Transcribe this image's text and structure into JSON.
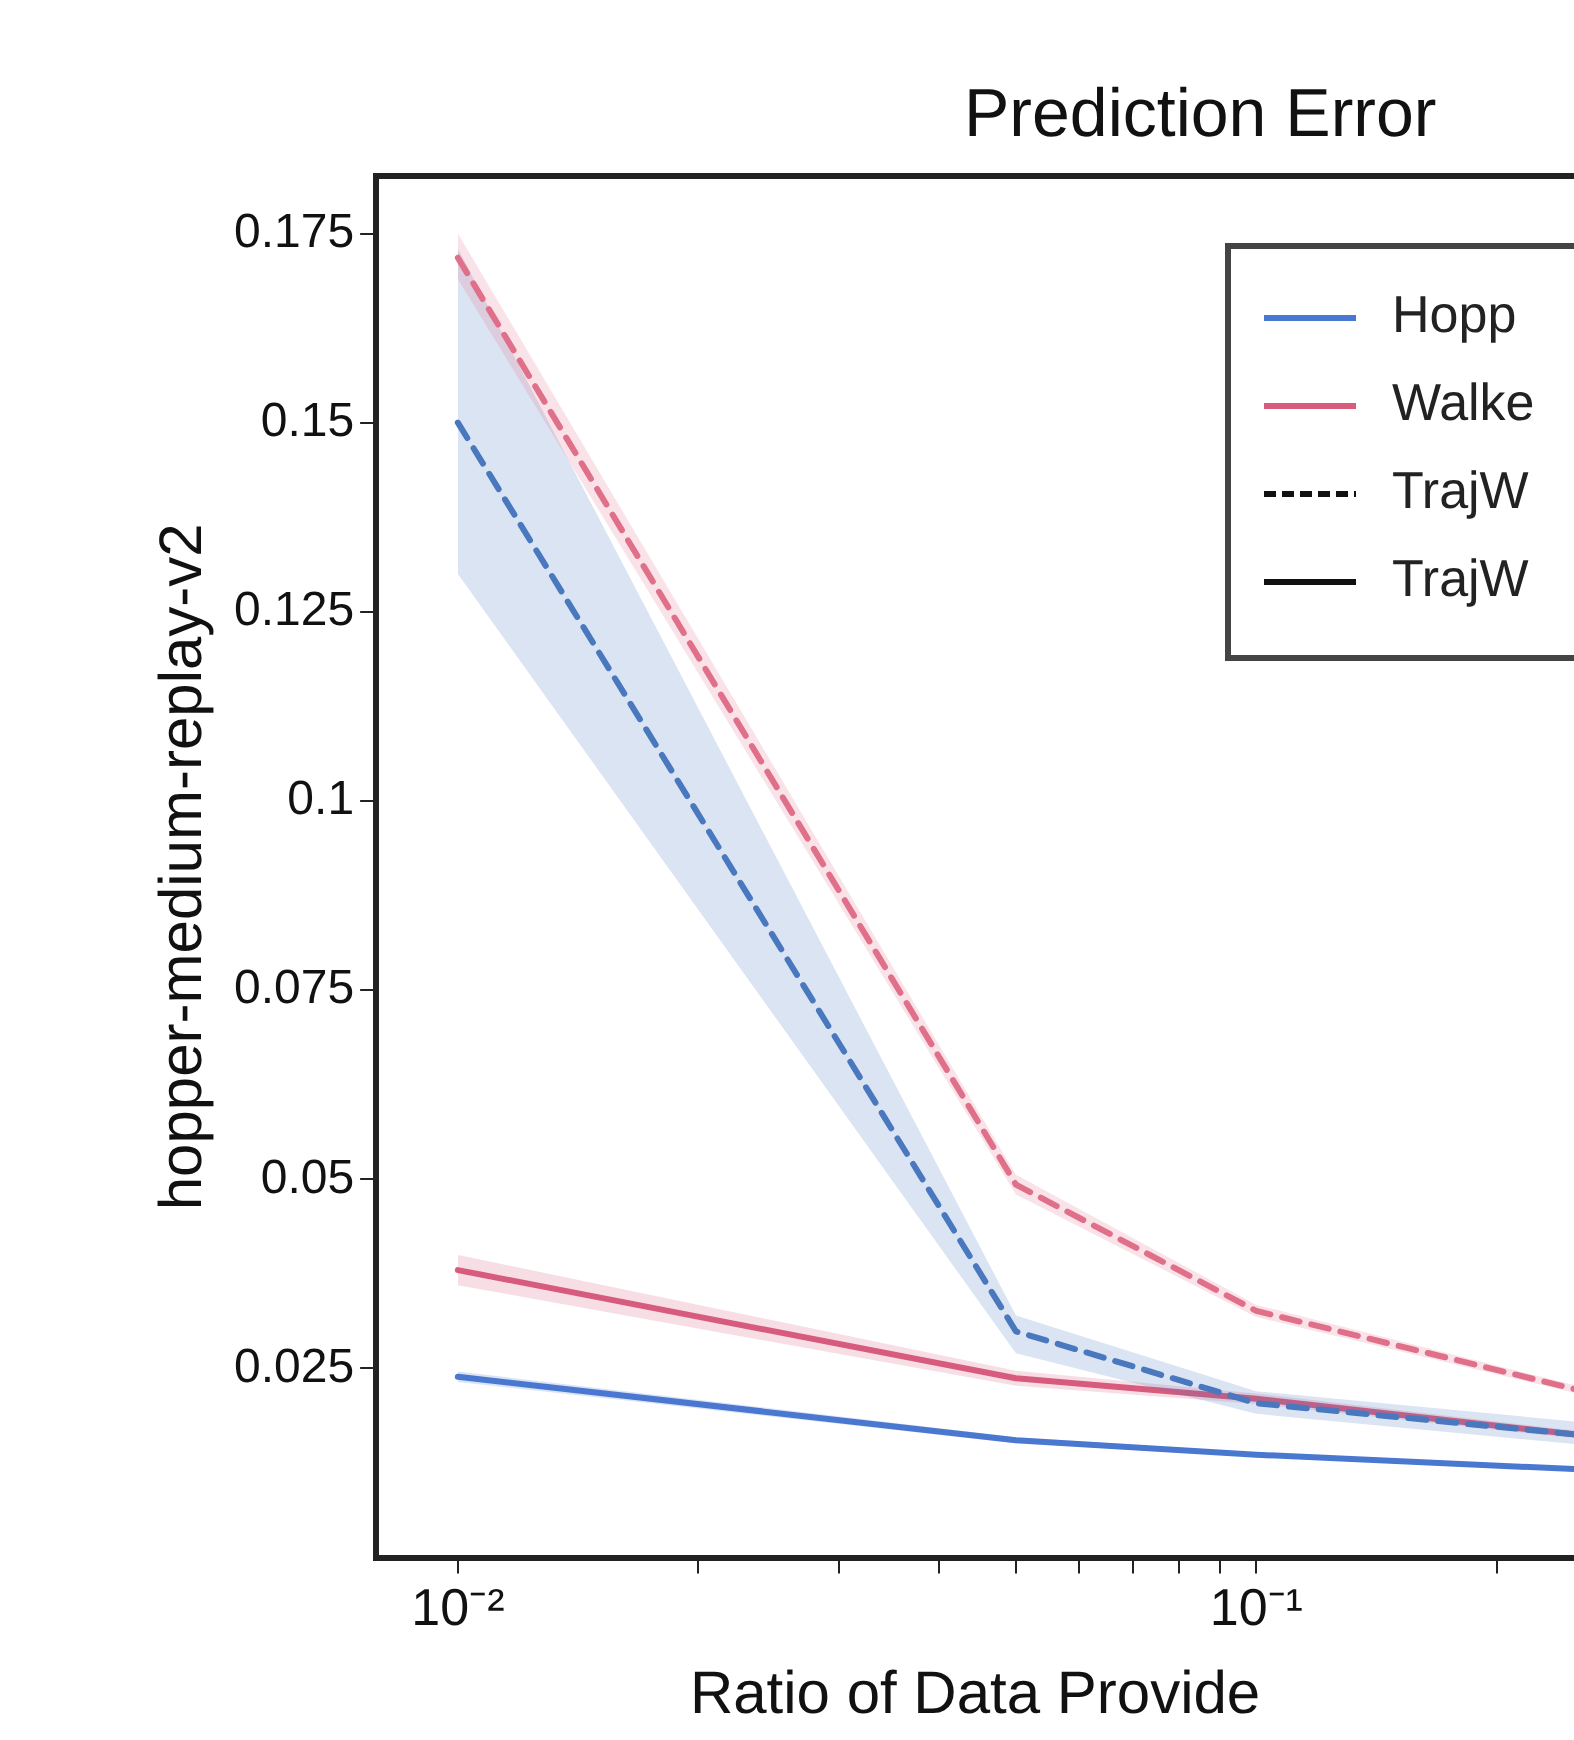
{
  "chart_data": {
    "type": "line",
    "title": "Prediction Error",
    "xlabel": "Ratio of Data Provide",
    "ylabel": "hopper-medium-replay-v2",
    "x": [
      0.01,
      0.05,
      0.1,
      0.25
    ],
    "log": "x",
    "xlim": [
      0.0079,
      0.25
    ],
    "xticks": [
      {
        "value": 0.01,
        "label": "10⁻²"
      },
      {
        "value": 0.02,
        "label": null
      },
      {
        "value": 0.03,
        "label": null
      },
      {
        "value": 0.04,
        "label": null
      },
      {
        "value": 0.05,
        "label": null
      },
      {
        "value": 0.06,
        "label": null
      },
      {
        "value": 0.07,
        "label": null
      },
      {
        "value": 0.08,
        "label": null
      },
      {
        "value": 0.09,
        "label": null
      },
      {
        "value": 0.1,
        "label": "10⁻¹"
      },
      {
        "value": 0.2,
        "label": null
      }
    ],
    "ylim": [
      0,
      0.1826
    ],
    "yticks": [
      0.025,
      0.05,
      0.075,
      0.1,
      0.125,
      0.15,
      0.175
    ],
    "grid": false,
    "legend": "top right",
    "marker": "none",
    "series": [
      {
        "color": "#e0708a",
        "line_style": "dashed",
        "values": [
          0.1718,
          0.0493,
          0.0326,
          0.0223
        ],
        "lower": [
          0.169,
          0.048,
          0.0318,
          0.0218
        ],
        "upper": [
          0.175,
          0.0506,
          0.0334,
          0.0228
        ]
      },
      {
        "color": "#4a78c0",
        "line_style": "dashed",
        "values": [
          0.15,
          0.0299,
          0.0204,
          0.0163
        ],
        "lower": [
          0.13,
          0.027,
          0.019,
          0.015
        ],
        "upper": [
          0.173,
          0.032,
          0.022,
          0.018
        ]
      },
      {
        "name": "Hopp",
        "color": "#4a78d0",
        "line_style": "solid",
        "values": [
          0.0239,
          0.0155,
          0.0136,
          0.0117
        ],
        "lower": [
          0.0232,
          0.0151,
          0.0133,
          0.0114
        ],
        "upper": [
          0.0246,
          0.0159,
          0.0139,
          0.012
        ]
      },
      {
        "name": "Walke",
        "color": "#d85c7c",
        "line_style": "solid",
        "values": [
          0.038,
          0.0237,
          0.021,
          0.0163
        ],
        "lower": [
          0.036,
          0.0227,
          0.0203,
          0.0158
        ],
        "upper": [
          0.04,
          0.0247,
          0.0217,
          0.0168
        ]
      }
    ],
    "annotations": [
      "TrajW",
      "TrajW"
    ]
  }
}
